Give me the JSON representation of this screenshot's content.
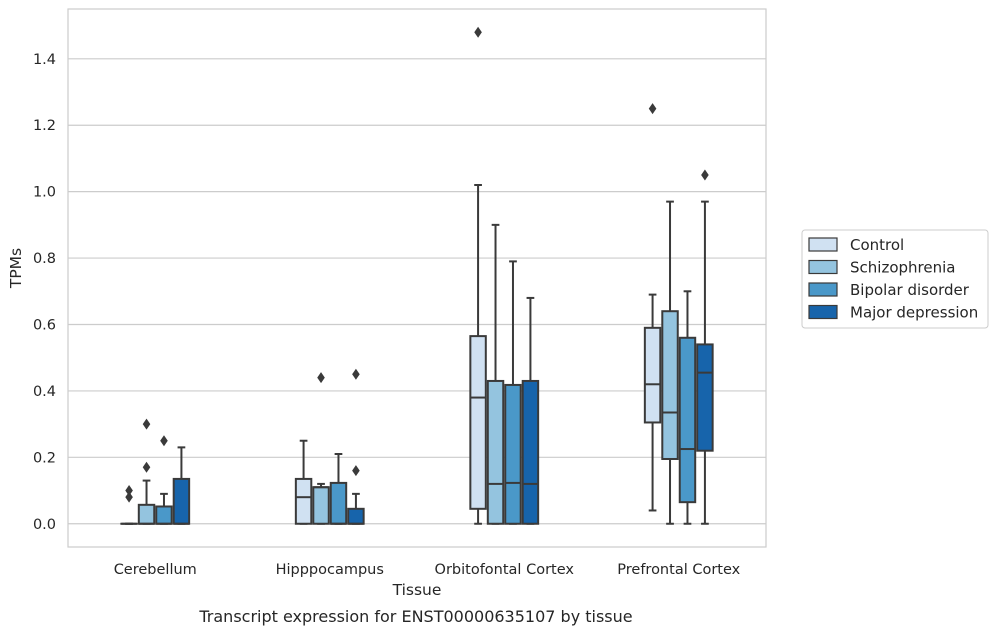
{
  "chart_data": {
    "type": "box",
    "title": "",
    "caption": "Transcript expression for ENST00000635107 by tissue",
    "xlabel": "Tissue",
    "ylabel": "TPMs",
    "ylim": [
      -0.07,
      1.55
    ],
    "yticks": [
      0.0,
      0.2,
      0.4,
      0.6,
      0.8,
      1.0,
      1.2,
      1.4
    ],
    "ytick_labels": [
      "0.0",
      "0.2",
      "0.4",
      "0.6",
      "0.8",
      "1.0",
      "1.2",
      "1.4"
    ],
    "grid": "horizontal",
    "legend_position": "right",
    "categories": [
      "Cerebellum",
      "Hipppocampus",
      "Orbitofontal Cortex",
      "Prefrontal Cortex"
    ],
    "series": [
      {
        "name": "Control",
        "color": "#d0e1f2",
        "boxes": [
          {
            "min": 0,
            "q1": 0,
            "median": 0,
            "q3": 0,
            "max": 0,
            "outliers": [
              0.08,
              0.1
            ]
          },
          {
            "min": 0,
            "q1": 0,
            "median": 0.08,
            "q3": 0.135,
            "max": 0.25,
            "outliers": []
          },
          {
            "min": 0,
            "q1": 0.045,
            "median": 0.38,
            "q3": 0.565,
            "max": 1.02,
            "outliers": [
              1.48
            ]
          },
          {
            "min": 0.04,
            "q1": 0.305,
            "median": 0.42,
            "q3": 0.59,
            "max": 0.69,
            "outliers": [
              1.25
            ]
          }
        ]
      },
      {
        "name": "Schizophrenia",
        "color": "#94c4df",
        "boxes": [
          {
            "min": 0,
            "q1": 0,
            "median": 0,
            "q3": 0.057,
            "max": 0.13,
            "outliers": [
              0.17,
              0.3
            ]
          },
          {
            "min": 0,
            "q1": 0,
            "median": 0.11,
            "q3": 0.11,
            "max": 0.12,
            "outliers": [
              0.44
            ]
          },
          {
            "min": 0,
            "q1": 0,
            "median": 0.12,
            "q3": 0.43,
            "max": 0.9,
            "outliers": []
          },
          {
            "min": 0,
            "q1": 0.195,
            "median": 0.335,
            "q3": 0.64,
            "max": 0.97,
            "outliers": []
          }
        ]
      },
      {
        "name": "Bipolar disorder",
        "color": "#4a98c9",
        "boxes": [
          {
            "min": 0,
            "q1": 0,
            "median": 0,
            "q3": 0.052,
            "max": 0.09,
            "outliers": [
              0.25
            ]
          },
          {
            "min": 0,
            "q1": 0,
            "median": 0,
            "q3": 0.123,
            "max": 0.21,
            "outliers": []
          },
          {
            "min": 0,
            "q1": 0,
            "median": 0.123,
            "q3": 0.418,
            "max": 0.79,
            "outliers": []
          },
          {
            "min": 0,
            "q1": 0.065,
            "median": 0.225,
            "q3": 0.56,
            "max": 0.7,
            "outliers": []
          }
        ]
      },
      {
        "name": "Major depression",
        "color": "#1764ab",
        "boxes": [
          {
            "min": 0,
            "q1": 0,
            "median": 0,
            "q3": 0.135,
            "max": 0.23,
            "outliers": []
          },
          {
            "min": 0,
            "q1": 0,
            "median": 0,
            "q3": 0.045,
            "max": 0.09,
            "outliers": [
              0.16,
              0.45
            ]
          },
          {
            "min": 0,
            "q1": 0,
            "median": 0.12,
            "q3": 0.43,
            "max": 0.68,
            "outliers": []
          },
          {
            "min": 0,
            "q1": 0.22,
            "median": 0.455,
            "q3": 0.54,
            "max": 0.97,
            "outliers": [
              1.05
            ]
          }
        ]
      }
    ]
  }
}
